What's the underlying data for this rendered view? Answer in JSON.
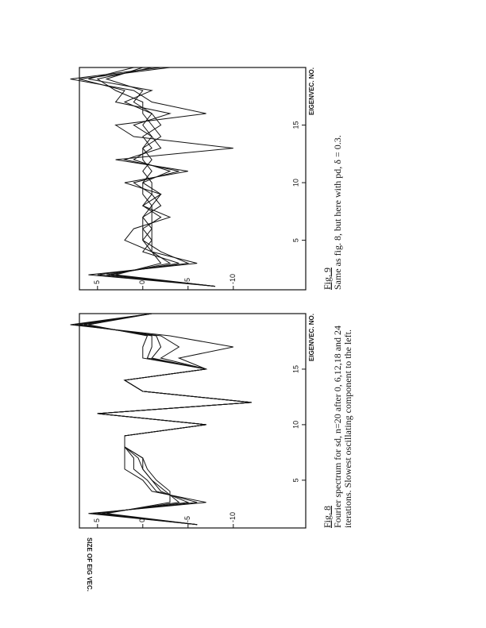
{
  "chart_data": [
    {
      "type": "line",
      "figure_label": "Fig. 8",
      "caption": [
        "Fourier spectrum for sd, n=20 after 0, 6,12,18 and 24",
        "iterations. Slowest oscillating component to the left."
      ],
      "xlabel": "EIGENVEC. NO.",
      "ylabel": "SIZE OF EIG VEC.",
      "x": [
        1,
        2,
        3,
        4,
        5,
        6,
        7,
        8,
        9,
        10,
        11,
        12,
        13,
        14,
        15,
        16,
        17,
        18,
        19,
        20
      ],
      "xlim": [
        0.7,
        20
      ],
      "ylim": [
        -18,
        7
      ],
      "xticks": [
        5,
        10,
        15
      ],
      "yticks": [
        5,
        0,
        -5,
        -10
      ],
      "series": [
        {
          "color": "#111",
          "values": [
            -6,
            6,
            -7,
            -1,
            0,
            2,
            2,
            2,
            2,
            -7,
            5,
            -12,
            0,
            2,
            -7,
            -4,
            -10,
            -3,
            8,
            -1
          ]
        },
        {
          "color": "#111",
          "values": [
            -6,
            5.5,
            -6,
            -1.5,
            -0.5,
            1,
            1,
            2,
            2,
            -7,
            5,
            -12,
            0,
            2,
            -7,
            -2,
            -4,
            -2,
            7.5,
            -1
          ]
        },
        {
          "color": "#111",
          "values": [
            -6,
            5,
            -5,
            -2,
            -1,
            0,
            0.5,
            2,
            2,
            -7,
            5,
            -12,
            0,
            2,
            -7,
            -1,
            -2,
            -1.5,
            7,
            -1
          ]
        },
        {
          "color": "#111",
          "values": [
            -6,
            4.5,
            -4,
            -2.5,
            -1,
            0,
            0,
            2,
            2,
            -7,
            5,
            -12,
            0,
            2,
            -7,
            -0.5,
            -1,
            -1,
            6.5,
            -1
          ]
        },
        {
          "color": "#111",
          "values": [
            -6,
            4,
            -3,
            -3,
            -1.5,
            -0.5,
            0,
            2,
            2,
            -7,
            5,
            -12,
            0,
            2,
            -7,
            0,
            0,
            -0.5,
            6,
            -1
          ]
        }
      ]
    },
    {
      "type": "line",
      "figure_label": "Fig. 9",
      "caption": [
        "Same as fig. 8, but here with pd, δ = 0.3."
      ],
      "xlabel": "EIGENVEC. NO.",
      "x": [
        1,
        2,
        3,
        4,
        5,
        6,
        7,
        8,
        9,
        10,
        11,
        12,
        13,
        14,
        15,
        16,
        17,
        18,
        19,
        20
      ],
      "xlim": [
        0.7,
        20
      ],
      "ylim": [
        -18,
        7
      ],
      "xticks": [
        5,
        10,
        15
      ],
      "yticks": [
        5,
        0,
        -5,
        -10
      ],
      "series": [
        {
          "color": "#111",
          "values": [
            -8,
            6,
            -6,
            -1,
            2,
            1,
            -3,
            0,
            -2,
            2,
            -5,
            3,
            -10,
            1,
            3,
            -7,
            -1,
            1,
            8,
            -2
          ]
        },
        {
          "color": "#111",
          "values": [
            -8,
            5,
            -5,
            -2,
            0,
            0,
            -2,
            0,
            -1,
            1,
            -4,
            2,
            -2,
            -1,
            1,
            -3,
            3,
            2,
            7,
            -3
          ]
        },
        {
          "color": "#111",
          "values": [
            -8,
            4,
            -4,
            0,
            -1,
            -1,
            0,
            -1,
            0,
            0,
            -3,
            1,
            -1,
            0,
            -2,
            -1,
            2,
            -1,
            6,
            1
          ]
        },
        {
          "color": "#111",
          "values": [
            -8,
            3.5,
            -3,
            -1,
            0,
            -1,
            -1,
            -1,
            -2,
            0,
            -1,
            0,
            0,
            -2,
            -1,
            0,
            0,
            3,
            5,
            -1
          ]
        },
        {
          "color": "#111",
          "values": [
            -8,
            3,
            -2,
            -1,
            -1,
            0,
            0,
            -2,
            -1,
            -1,
            0,
            -1,
            0,
            -1,
            0,
            -1,
            1,
            0,
            4,
            0
          ]
        }
      ]
    }
  ]
}
